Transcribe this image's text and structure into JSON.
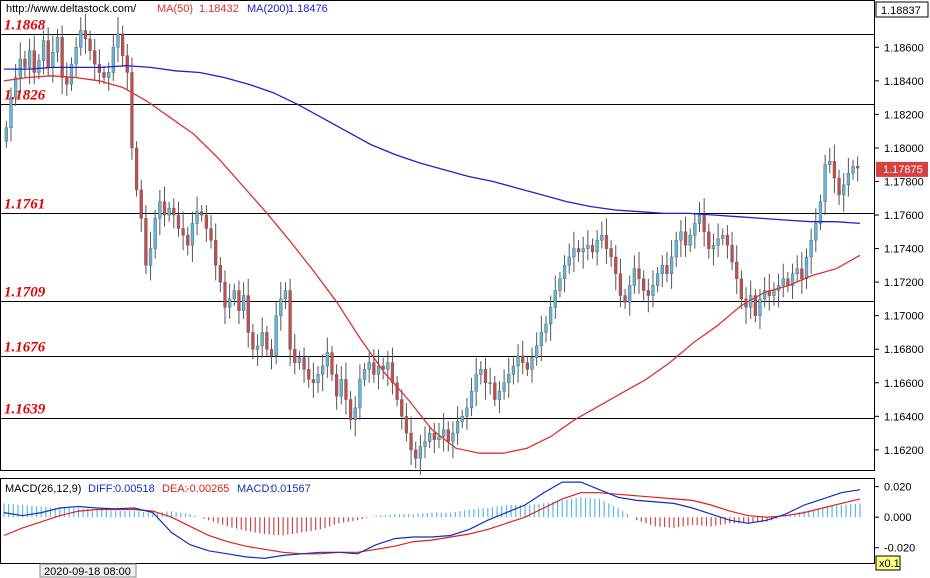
{
  "header": {
    "url": "http://www.deltastock.com/",
    "ma50_label": "MA(50)",
    "ma50_value": "1.18432",
    "ma200_label": "MA(200)",
    "ma200_value": "1.18476",
    "top_price": "1.18837"
  },
  "macd_header": {
    "label": "MACD(26,12,9)",
    "diff_label": "DIFF:",
    "diff_value": "0.00518",
    "dea_label": "DEA:",
    "dea_value": "-0.00265",
    "macd_label": "MACD:",
    "macd_value": "0.01567"
  },
  "footer": {
    "date": "2020-09-18 08:00",
    "zoom": "x0.1"
  },
  "current_price": "1.17875",
  "colors": {
    "up": "#5bb8e0",
    "down": "#c84a4a",
    "ma50": "#e03030",
    "ma200": "#2020d0",
    "macd_diff": "#1030c0",
    "macd_dea": "#e02020",
    "level_text": "#e00000"
  },
  "chart_data": {
    "type": "candlestick",
    "price_axis": {
      "range": [
        1.1608,
        1.1887
      ],
      "ticks": [
        "1.18600",
        "1.18400",
        "1.18200",
        "1.18000",
        "1.17800",
        "1.17600",
        "1.17400",
        "1.17200",
        "1.17000",
        "1.16800",
        "1.16600",
        "1.16400",
        "1.16200"
      ]
    },
    "levels": [
      {
        "label": "1.1868",
        "value": 1.1868
      },
      {
        "label": "1.1826",
        "value": 1.1826
      },
      {
        "label": "1.1761",
        "value": 1.1761
      },
      {
        "label": "1.1709",
        "value": 1.1709
      },
      {
        "label": "1.1676",
        "value": 1.1676
      },
      {
        "label": "1.1639",
        "value": 1.1639
      }
    ],
    "candles_close": [
      1.1812,
      1.183,
      1.1842,
      1.1853,
      1.1848,
      1.1858,
      1.1845,
      1.1852,
      1.1864,
      1.1848,
      1.1857,
      1.1866,
      1.1842,
      1.1838,
      1.185,
      1.186,
      1.187,
      1.1865,
      1.1858,
      1.185,
      1.1845,
      1.1842,
      1.1845,
      1.186,
      1.1868,
      1.1855,
      1.1845,
      1.18,
      1.1775,
      1.1758,
      1.173,
      1.174,
      1.1758,
      1.1768,
      1.176,
      1.1764,
      1.176,
      1.1752,
      1.1748,
      1.1742,
      1.1755,
      1.1762,
      1.176,
      1.1752,
      1.1745,
      1.173,
      1.172,
      1.1705,
      1.171,
      1.1715,
      1.1703,
      1.1712,
      1.169,
      1.168,
      1.1682,
      1.169,
      1.168,
      1.1676,
      1.17,
      1.171,
      1.1715,
      1.168,
      1.1672,
      1.1675,
      1.1668,
      1.1662,
      1.166,
      1.1665,
      1.167,
      1.1678,
      1.1665,
      1.1652,
      1.1662,
      1.165,
      1.1638,
      1.1645,
      1.1662,
      1.1668,
      1.1672,
      1.1665,
      1.167,
      1.1668,
      1.1672,
      1.166,
      1.165,
      1.164,
      1.163,
      1.162,
      1.1615,
      1.1622,
      1.1625,
      1.163,
      1.1626,
      1.1628,
      1.1632,
      1.1625,
      1.163,
      1.1637,
      1.164,
      1.1645,
      1.1655,
      1.1665,
      1.1668,
      1.166,
      1.166,
      1.165,
      1.1655,
      1.166,
      1.1665,
      1.167,
      1.1676,
      1.1672,
      1.1668,
      1.1675,
      1.1682,
      1.169,
      1.1695,
      1.1705,
      1.1715,
      1.1722,
      1.173,
      1.1735,
      1.174,
      1.1738,
      1.174,
      1.1742,
      1.1738,
      1.1745,
      1.1748,
      1.174,
      1.1735,
      1.1725,
      1.1712,
      1.1708,
      1.1718,
      1.1728,
      1.1722,
      1.1715,
      1.1712,
      1.1718,
      1.1725,
      1.173,
      1.1725,
      1.1735,
      1.1745,
      1.175,
      1.1742,
      1.1748,
      1.1755,
      1.176,
      1.175,
      1.174,
      1.1742,
      1.1746,
      1.1748,
      1.1742,
      1.1732,
      1.1722,
      1.171,
      1.1705,
      1.1712,
      1.17,
      1.171,
      1.1715,
      1.1712,
      1.1715,
      1.1718,
      1.1722,
      1.1718,
      1.1725,
      1.1728,
      1.1722,
      1.1735,
      1.1745,
      1.1755,
      1.1768,
      1.179,
      1.1792,
      1.1782,
      1.1772,
      1.1778,
      1.1785,
      1.1789,
      1.1788
    ],
    "ma50": [
      1.184,
      1.1842,
      1.1843,
      1.1842,
      1.184,
      1.1836,
      1.1828,
      1.1818,
      1.1808,
      1.1794,
      1.1778,
      1.1762,
      1.1745,
      1.1727,
      1.1708,
      1.1686,
      1.1666,
      1.165,
      1.1632,
      1.1621,
      1.1618,
      1.1618,
      1.1621,
      1.1628,
      1.1638,
      1.1646,
      1.1654,
      1.1662,
      1.1672,
      1.1684,
      1.1694,
      1.1706,
      1.1714,
      1.1718,
      1.1724,
      1.1728,
      1.1736
    ],
    "ma200": [
      1.1847,
      1.1847,
      1.1848,
      1.1848,
      1.1848,
      1.1849,
      1.1848,
      1.1846,
      1.1845,
      1.1842,
      1.1838,
      1.1833,
      1.1826,
      1.1818,
      1.181,
      1.1802,
      1.1796,
      1.1791,
      1.1787,
      1.1783,
      1.178,
      1.1776,
      1.1772,
      1.1768,
      1.1765,
      1.1763,
      1.1762,
      1.1761,
      1.1761,
      1.176,
      1.1759,
      1.1758,
      1.1757,
      1.1756,
      1.1756,
      1.1755
    ],
    "macd_axis": {
      "range": [
        -0.03,
        0.025
      ],
      "ticks": [
        "0.020",
        "0.000",
        "-0.020"
      ]
    },
    "macd_diff": [
      0.003,
      0.001,
      0.003,
      0.006,
      0.007,
      0.006,
      0.0055,
      0.006,
      0.003,
      -0.01,
      -0.018,
      -0.022,
      -0.024,
      -0.026,
      -0.027,
      -0.025,
      -0.024,
      -0.023,
      -0.023,
      -0.024,
      -0.018,
      -0.014,
      -0.013,
      -0.013,
      -0.012,
      -0.008,
      -0.002,
      0.003,
      0.008,
      0.016,
      0.023,
      0.023,
      0.018,
      0.013,
      0.011,
      0.01,
      0.009,
      0.006,
      0.002,
      -0.002,
      -0.004,
      -0.002,
      0.002,
      0.008,
      0.012,
      0.016,
      0.018
    ],
    "macd_dea": [
      -0.012,
      -0.007,
      -0.003,
      0.001,
      0.004,
      0.005,
      0.005,
      0.005,
      0.004,
      0.0,
      -0.006,
      -0.012,
      -0.016,
      -0.019,
      -0.021,
      -0.023,
      -0.024,
      -0.024,
      -0.023,
      -0.023,
      -0.021,
      -0.019,
      -0.016,
      -0.015,
      -0.013,
      -0.011,
      -0.008,
      -0.004,
      0.0,
      0.006,
      0.012,
      0.016,
      0.016,
      0.015,
      0.014,
      0.013,
      0.012,
      0.011,
      0.008,
      0.004,
      0.001,
      0.0,
      0.001,
      0.003,
      0.006,
      0.009,
      0.012
    ],
    "macd_hist": [
      0.009,
      0.008,
      0.007,
      0.006,
      0.006,
      0.005,
      0.004,
      0.004,
      0.003,
      0.004,
      0.002,
      -0.002,
      -0.006,
      -0.009,
      -0.011,
      -0.012,
      -0.01,
      -0.008,
      -0.004,
      -0.002,
      0.001,
      0.002,
      0.002,
      0.003,
      0.003,
      0.005,
      0.006,
      0.008,
      0.008,
      0.009,
      0.011,
      0.013,
      0.012,
      0.006,
      -0.002,
      -0.006,
      -0.007,
      -0.005,
      -0.006,
      -0.004,
      -0.004,
      -0.003,
      0.001,
      0.004,
      0.006,
      0.008,
      0.009
    ]
  }
}
